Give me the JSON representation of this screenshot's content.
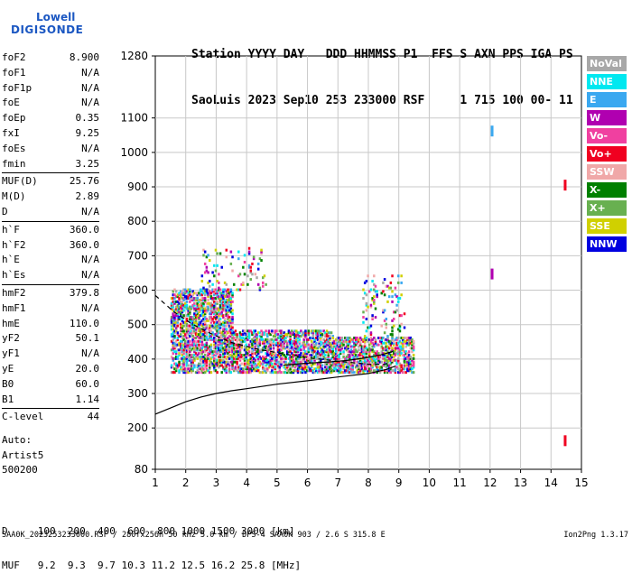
{
  "logo": {
    "line1": "Lowell",
    "line2": "DIGISONDE"
  },
  "header": {
    "line1": "Station YYYY DAY   DDD HHMMSS P1  FFS S AXN PPS IGA PS",
    "line2": "SaoLuis 2023 Sep10 253 233000 RSF     1 715 100 00- 11"
  },
  "params": [
    {
      "name": "foF2",
      "value": "8.900"
    },
    {
      "name": "foF1",
      "value": "N/A"
    },
    {
      "name": "foF1p",
      "value": "N/A"
    },
    {
      "name": "foE",
      "value": "N/A"
    },
    {
      "name": "foEp",
      "value": "0.35"
    },
    {
      "name": "fxI",
      "value": "9.25"
    },
    {
      "name": "foEs",
      "value": "N/A"
    },
    {
      "name": "fmin",
      "value": "3.25"
    },
    {
      "sep": true
    },
    {
      "name": "MUF(D)",
      "value": "25.76"
    },
    {
      "name": "M(D)",
      "value": "2.89"
    },
    {
      "name": "D",
      "value": "N/A"
    },
    {
      "sep": true
    },
    {
      "name": "h`F",
      "value": "360.0"
    },
    {
      "name": "h`F2",
      "value": "360.0"
    },
    {
      "name": "h`E",
      "value": "N/A"
    },
    {
      "name": "h`Es",
      "value": "N/A"
    },
    {
      "sep": true
    },
    {
      "name": "hmF2",
      "value": "379.8"
    },
    {
      "name": "hmF1",
      "value": "N/A"
    },
    {
      "name": "hmE",
      "value": "110.0"
    },
    {
      "name": "yF2",
      "value": "50.1"
    },
    {
      "name": "yF1",
      "value": "N/A"
    },
    {
      "name": "yE",
      "value": "20.0"
    },
    {
      "name": "B0",
      "value": "60.0"
    },
    {
      "name": "B1",
      "value": "1.14"
    },
    {
      "sep": true
    },
    {
      "name": "C-level",
      "value": "44"
    }
  ],
  "auto": {
    "line1": "Auto:",
    "line2": "Artist5",
    "line3": "500200"
  },
  "muf_table": {
    "row1": "D     100  200  400  600  800 1000 1500 3000 [km]",
    "row2": "MUF   9.2  9.3  9.7 10.3 11.2 12.5 16.2 25.8 [MHz]"
  },
  "footer": {
    "left": "SAA0K_2023253233000.RSF / 280fx256h 50 kHz 5.0 km / DPS-4 SAA0K 903 / 2.6 S 315.8 E",
    "right": "Ion2Png 1.3.17"
  },
  "legend": [
    {
      "label": "NoVal",
      "color": "#a8a8a8"
    },
    {
      "label": "NNE",
      "color": "#00e8f0"
    },
    {
      "label": "E",
      "color": "#3aa8f0"
    },
    {
      "label": "W",
      "color": "#b000b0"
    },
    {
      "label": "Vo-",
      "color": "#f040a0"
    },
    {
      "label": "Vo+",
      "color": "#f00020"
    },
    {
      "label": "SSW",
      "color": "#f0a8a8"
    },
    {
      "label": "X-",
      "color": "#008000"
    },
    {
      "label": "X+",
      "color": "#68b050"
    },
    {
      "label": "SSE",
      "color": "#d0d000"
    },
    {
      "label": "NNW",
      "color": "#0000e0"
    }
  ],
  "chart_data": {
    "type": "scatter",
    "xlim": [
      1,
      15
    ],
    "ylim": [
      80,
      1280
    ],
    "x_ticks": [
      "1",
      "2",
      "3",
      "4",
      "5",
      "6",
      "7",
      "8",
      "9",
      "10",
      "11",
      "12",
      "13",
      "14",
      "15"
    ],
    "y_ticks": [
      "80",
      "200",
      "300",
      "400",
      "500",
      "600",
      "700",
      "800",
      "900",
      "1000",
      "1100",
      "1280"
    ],
    "grid": true,
    "clusters": [
      {
        "x": [
          1.5,
          3.5
        ],
        "y": [
          360,
          600
        ],
        "density": "high"
      },
      {
        "x": [
          3.5,
          6.8
        ],
        "y": [
          360,
          480
        ],
        "density": "high"
      },
      {
        "x": [
          6.8,
          9.5
        ],
        "y": [
          360,
          460
        ],
        "density": "high"
      },
      {
        "x": [
          7.8,
          9.2
        ],
        "y": [
          460,
          640
        ],
        "density": "low"
      },
      {
        "x": [
          2.5,
          4.6
        ],
        "y": [
          600,
          720
        ],
        "density": "low"
      }
    ],
    "isolated_points": [
      {
        "x": 12.05,
        "y": 1062,
        "color": "#3aa8f0"
      },
      {
        "x": 12.05,
        "y": 647,
        "color": "#b000b0"
      },
      {
        "x": 14.45,
        "y": 905,
        "color": "#f00020"
      },
      {
        "x": 14.45,
        "y": 163,
        "color": "#f00020"
      }
    ],
    "curves": [
      {
        "name": "",
        "style": "solid",
        "x": [
          1.0,
          1.5,
          2.0,
          2.5,
          3.0,
          3.5,
          4.0,
          5.0,
          6.0,
          7.0,
          8.0,
          8.6,
          8.9
        ],
        "y": [
          240,
          258,
          276,
          290,
          300,
          308,
          314,
          327,
          337,
          348,
          358,
          370,
          380
        ]
      },
      {
        "name": "",
        "style": "dashed",
        "x": [
          1.0,
          1.6,
          2.2,
          2.8,
          3.5,
          4.3,
          5.2,
          6.2,
          7.2,
          8.0,
          8.5,
          8.8
        ],
        "y": [
          585,
          538,
          502,
          475,
          448,
          430,
          415,
          402,
          392,
          385,
          385,
          390
        ]
      },
      {
        "name": "",
        "style": "solid",
        "x": [
          5.2,
          6.0,
          6.8,
          7.4,
          8.0,
          8.4,
          8.8
        ],
        "y": [
          382,
          388,
          392,
          397,
          405,
          412,
          422
        ]
      }
    ]
  }
}
